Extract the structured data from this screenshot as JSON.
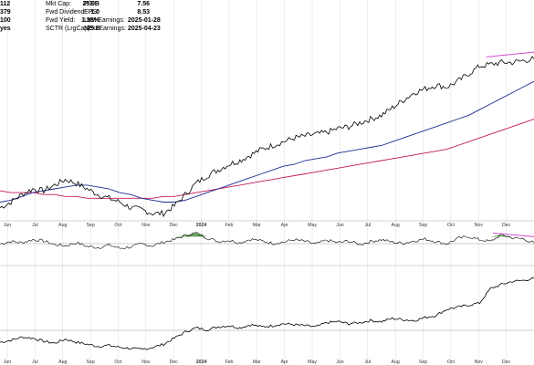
{
  "stats": {
    "left_values": [
      "112",
      "379",
      "100",
      "yes"
    ],
    "col1": [
      {
        "label": "Mkt Cap:",
        "value": "25.0B"
      },
      {
        "label": "Fwd Dividend:",
        "value": "1.0"
      },
      {
        "label": "Fwd Yield:",
        "value": "1.55%"
      },
      {
        "label": "SCTR (LrgCap):",
        "value": "75.8"
      }
    ],
    "col2": [
      {
        "label": "P/E:",
        "value": "7.56"
      },
      {
        "label": "EPS:",
        "value": "8.53"
      },
      {
        "label": "Last Earnings:",
        "value": "2025-01-28"
      },
      {
        "label": "Next Earnings:",
        "value": "2025-04-23"
      }
    ]
  },
  "colors": {
    "price": "#000000",
    "ma_short": "#1f2c8f",
    "ma_long": "#c2185b",
    "trendline": "#d04bd0",
    "rsi_fill": "#4a8f3c",
    "grid": "#dddddd",
    "panel_border": "#aaaaaa"
  },
  "chart_data": [
    {
      "type": "line",
      "panel": "price",
      "x_ticks": [
        "Jun",
        "Jul",
        "Aug",
        "Sep",
        "Oct",
        "Nov",
        "Dec",
        "2024",
        "Feb",
        "Mar",
        "Apr",
        "May",
        "Jun",
        "Jul",
        "Aug",
        "Sep",
        "Oct",
        "Nov",
        "Dec"
      ],
      "bold_ticks": [
        "2024"
      ],
      "grid": true,
      "series": [
        {
          "values": [
            5,
            8,
            12,
            15,
            14,
            17,
            20,
            18,
            15,
            12,
            10,
            8,
            5,
            4,
            2,
            2,
            6,
            12,
            18,
            22,
            25,
            28,
            30,
            33,
            36,
            38,
            40,
            42,
            43,
            44,
            45,
            47,
            48,
            50,
            52,
            54,
            58,
            62,
            66,
            68,
            70,
            69,
            72,
            76,
            80,
            81,
            82,
            82,
            83,
            84
          ]
        },
        {
          "values": [
            8,
            9,
            11,
            13,
            14,
            15,
            16,
            17,
            17,
            16,
            15,
            13,
            12,
            10,
            9,
            8,
            8,
            9,
            11,
            13,
            15,
            17,
            19,
            21,
            23,
            25,
            27,
            28,
            30,
            31,
            32,
            34,
            35,
            36,
            37,
            38,
            40,
            42,
            44,
            46,
            48,
            50,
            52,
            54,
            57,
            60,
            63,
            66,
            69,
            72
          ]
        },
        {
          "values": [
            14,
            13,
            13,
            13,
            12,
            12,
            11,
            11,
            10,
            10,
            10,
            10,
            10,
            10,
            10,
            11,
            11,
            12,
            13,
            14,
            15,
            16,
            17,
            18,
            19,
            20,
            21,
            22,
            23,
            24,
            25,
            26,
            27,
            28,
            29,
            30,
            31,
            32,
            33,
            34,
            35,
            36,
            38,
            40,
            42,
            44,
            46,
            48,
            50,
            52
          ]
        }
      ]
    },
    {
      "type": "line",
      "panel": "momentum",
      "series": [
        {
          "values": [
            48,
            52,
            50,
            55,
            53,
            47,
            45,
            50,
            44,
            42,
            46,
            41,
            43,
            48,
            45,
            51,
            55,
            62,
            66,
            58,
            52,
            54,
            50,
            56,
            53,
            49,
            51,
            55,
            52,
            48,
            54,
            50,
            53,
            47,
            52,
            55,
            51,
            49,
            53,
            56,
            52,
            48,
            57,
            60,
            55,
            52,
            63,
            58,
            56,
            50
          ]
        }
      ]
    },
    {
      "type": "line",
      "panel": "relative",
      "series": [
        {
          "values": [
            10,
            12,
            15,
            14,
            11,
            9,
            13,
            10,
            8,
            6,
            7,
            5,
            4,
            3,
            5,
            8,
            14,
            20,
            24,
            22,
            25,
            26,
            24,
            27,
            25,
            26,
            28,
            27,
            26,
            25,
            29,
            30,
            28,
            29,
            31,
            30,
            33,
            32,
            31,
            34,
            36,
            42,
            44,
            46,
            48,
            62,
            66,
            69,
            70,
            72
          ]
        }
      ]
    }
  ]
}
